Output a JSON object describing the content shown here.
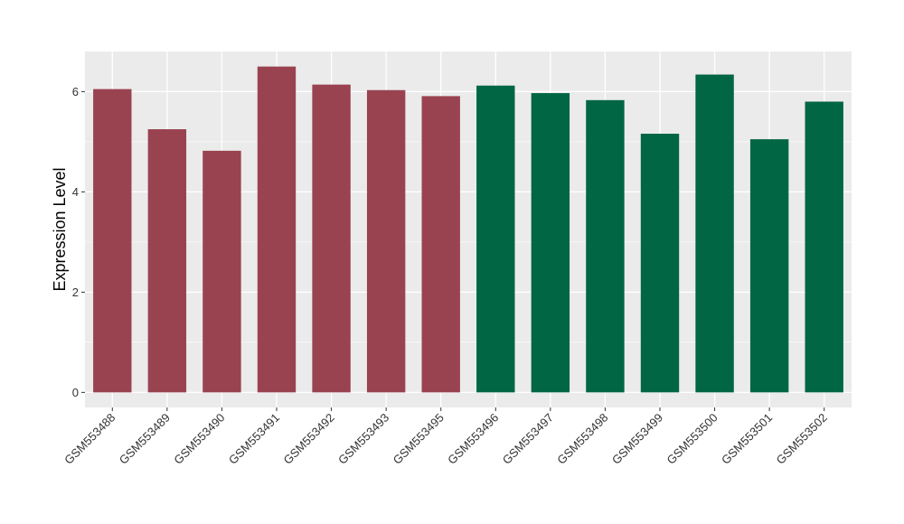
{
  "chart_data": {
    "type": "bar",
    "title": "",
    "xlabel": "",
    "ylabel": "Expression Level",
    "ylim": [
      -0.3,
      6.8
    ],
    "yticks": [
      0,
      2,
      4,
      6
    ],
    "grid": true,
    "legend": "none",
    "categories": [
      "GSM553488",
      "GSM553489",
      "GSM553490",
      "GSM553491",
      "GSM553492",
      "GSM553493",
      "GSM553495",
      "GSM553496",
      "GSM553497",
      "GSM553498",
      "GSM553499",
      "GSM553500",
      "GSM553501",
      "GSM553502"
    ],
    "values": [
      6.05,
      5.25,
      4.82,
      6.5,
      6.14,
      6.03,
      5.91,
      6.12,
      5.97,
      5.83,
      5.16,
      6.34,
      5.05,
      5.8
    ],
    "group": [
      0,
      0,
      0,
      0,
      0,
      0,
      0,
      1,
      1,
      1,
      1,
      1,
      1,
      1
    ],
    "group_colors": [
      "#9A4350",
      "#006644"
    ]
  },
  "style": {
    "panel_background": "#EBEBEB",
    "grid_color": "#FFFFFF"
  }
}
